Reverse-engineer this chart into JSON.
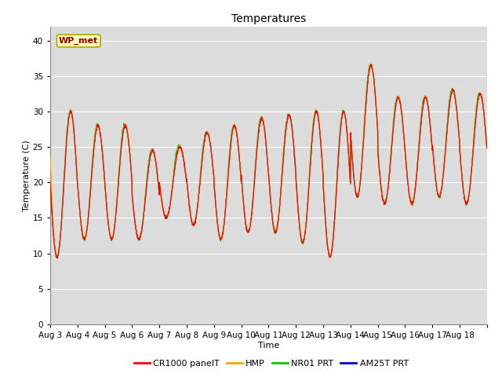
{
  "title": "Temperatures",
  "xlabel": "Time",
  "ylabel": "Temperature (C)",
  "station_label": "WP_met",
  "ylim": [
    0,
    42
  ],
  "yticks": [
    0,
    5,
    10,
    15,
    20,
    25,
    30,
    35,
    40
  ],
  "x_labels": [
    "Aug 3",
    "Aug 4",
    "Aug 5",
    "Aug 6",
    "Aug 7",
    "Aug 8",
    "Aug 9",
    "Aug 10",
    "Aug 11",
    "Aug 12",
    "Aug 13",
    "Aug 14",
    "Aug 15",
    "Aug 16",
    "Aug 17",
    "Aug 18"
  ],
  "series_colors": [
    "#FF0000",
    "#FFA500",
    "#00CC00",
    "#0000CC"
  ],
  "series_labels": [
    "CR1000 panelT",
    "HMP",
    "NR01 PRT",
    "AM25T PRT"
  ],
  "background_color": "#DCDCDC",
  "figure_background": "#FFFFFF",
  "title_fontsize": 10,
  "axis_label_fontsize": 8,
  "tick_fontsize": 7.5,
  "n_days": 16,
  "daily_max": [
    30,
    28,
    28,
    24.5,
    25,
    27,
    28,
    29,
    29.5,
    30,
    30,
    36.5,
    32,
    32,
    33,
    32.5
  ],
  "daily_min": [
    9.5,
    12,
    12,
    12,
    15,
    14,
    12,
    13,
    13,
    11.5,
    9.5,
    18,
    17,
    17,
    18,
    17
  ]
}
